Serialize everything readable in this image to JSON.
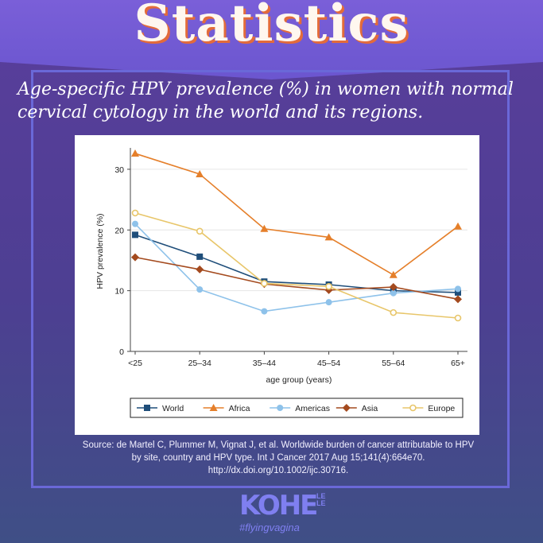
{
  "header": {
    "title": "Statistics"
  },
  "subtitle": "Age-specific HPV prevalence (%) in women with normal cervical cytology in the world and its regions.",
  "source": "Source: de Martel C, Plummer M, Vignat J, et al. Worldwide burden of cancer attributable to HPV by site, country and HPV type. Int J Cancer 2017 Aug 15;141(4):664e70. http://dx.doi.org/10.1002/ijc.30716.",
  "logo": {
    "main": "KOHE",
    "small": "LE LE",
    "hashtag": "#flyingvagina"
  },
  "chart_data": {
    "type": "line",
    "title": "",
    "xlabel": "age group (years)",
    "ylabel": "HPV prevalence (%)",
    "categories": [
      "<25",
      "25–34",
      "35–44",
      "45–54",
      "55–64",
      "65+"
    ],
    "ylim": [
      0,
      33
    ],
    "yticks": [
      "0",
      "10",
      "20",
      "30"
    ],
    "grid": true,
    "legend_placement": "bottom",
    "series": [
      {
        "name": "World",
        "color": "#1f4e7a",
        "marker": "square",
        "values": [
          19.2,
          15.6,
          11.5,
          11.0,
          10.0,
          9.7
        ]
      },
      {
        "name": "Africa",
        "color": "#e57f2a",
        "marker": "triangle",
        "values": [
          32.6,
          29.2,
          20.2,
          18.8,
          12.6,
          20.6
        ]
      },
      {
        "name": "Americas",
        "color": "#8ec2ea",
        "marker": "circle",
        "values": [
          21.0,
          10.2,
          6.6,
          8.1,
          9.6,
          10.3
        ]
      },
      {
        "name": "Asia",
        "color": "#a44a1e",
        "marker": "diamond",
        "values": [
          15.5,
          13.5,
          11.1,
          10.1,
          10.6,
          8.6
        ]
      },
      {
        "name": "Europe",
        "color": "#e8c66a",
        "marker": "hollow-circle",
        "values": [
          22.8,
          19.8,
          11.2,
          10.7,
          6.4,
          5.5
        ]
      }
    ]
  }
}
